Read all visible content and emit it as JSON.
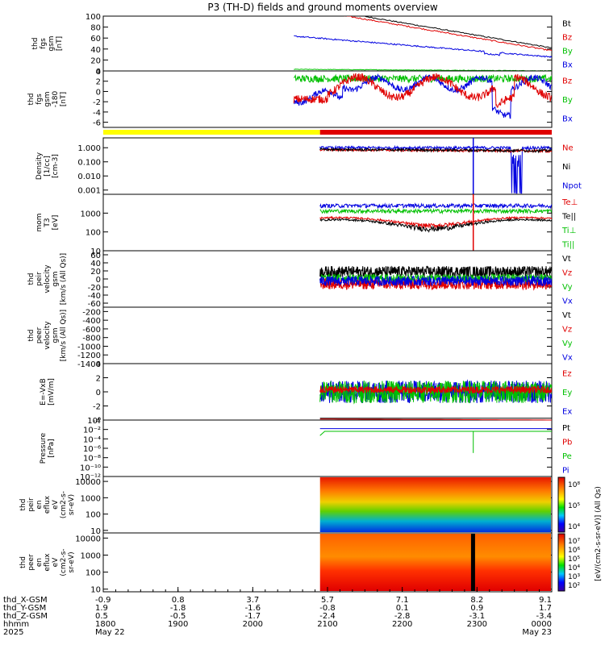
{
  "title": "P3 (TH-D) fields and ground moments overview",
  "chart_data": {
    "type": "line",
    "time_axis": {
      "rows": [
        {
          "label": "thd_X-GSM",
          "values": [
            "-0.9",
            "0.8",
            "3.7",
            "5.7",
            "7.1",
            "8.2",
            "9.1"
          ]
        },
        {
          "label": "thd_Y-GSM",
          "values": [
            "1.9",
            "-1.8",
            "-1.6",
            "-0.8",
            "0.1",
            "0.9",
            "1.7"
          ]
        },
        {
          "label": "thd_Z-GSM",
          "values": [
            "0.5",
            "-0.5",
            "-1.7",
            "-2.4",
            "-2.8",
            "-3.1",
            "-3.4"
          ]
        },
        {
          "label": "hhmm",
          "values": [
            "1800",
            "1900",
            "2000",
            "2100",
            "2200",
            "2300",
            "0000"
          ]
        },
        {
          "label": "2025",
          "values": [
            "May 22",
            "",
            "",
            "",
            "",
            "",
            "May 23"
          ]
        }
      ]
    },
    "panels": [
      {
        "id": "fgs",
        "ylabel": [
          "thd",
          "fgs",
          "gsm",
          "[nT]"
        ],
        "scale": "linear",
        "ylim": [
          0,
          100
        ],
        "ticks": [
          "0",
          "20",
          "40",
          "60",
          "80",
          "100"
        ],
        "legend": [
          {
            "name": "Bt",
            "color": "#000000"
          },
          {
            "name": "Bz",
            "color": "#e00000"
          },
          {
            "name": "By",
            "color": "#00c000"
          },
          {
            "name": "Bx",
            "color": "#0000e0"
          }
        ]
      },
      {
        "id": "fgs_dsl",
        "ylabel": [
          "thd",
          "fgs",
          "gsm",
          "-180",
          "[nT]"
        ],
        "scale": "linear",
        "ylim": [
          -7,
          4
        ],
        "ticks": [
          "-6",
          "-4",
          "-2",
          "0",
          "2",
          "4"
        ],
        "legend": [
          {
            "name": "Bz",
            "color": "#e00000"
          },
          {
            "name": "By",
            "color": "#00c000"
          },
          {
            "name": "Bx",
            "color": "#0000e0"
          }
        ]
      },
      {
        "id": "density",
        "ylabel": [
          "Density",
          "[1/cc]",
          "[cm-3]"
        ],
        "scale": "log",
        "ylim": [
          0.0005,
          5
        ],
        "ticks": [
          "1.000",
          "0.100",
          "0.010",
          "0.001"
        ],
        "legend": [
          {
            "name": "Ne",
            "color": "#e00000"
          },
          {
            "name": "Ni",
            "color": "#000000"
          },
          {
            "name": "Npot",
            "color": "#0000e0"
          }
        ]
      },
      {
        "id": "temp",
        "ylabel": [
          "mom",
          "T3",
          "[eV]"
        ],
        "scale": "log",
        "ylim": [
          10,
          10000
        ],
        "ticks": [
          "1000",
          "100",
          "10"
        ],
        "legend": [
          {
            "name": "Te⊥",
            "color": "#e00000"
          },
          {
            "name": "Te||",
            "color": "#000000"
          },
          {
            "name": "Ti⊥",
            "color": "#00c000"
          },
          {
            "name": "Ti||",
            "color": "#00c000"
          }
        ]
      },
      {
        "id": "vel_i",
        "ylabel": [
          "thd",
          "peir",
          "velocity",
          "gsm",
          "[km/s (All Qs)]"
        ],
        "scale": "linear",
        "ylim": [
          -70,
          70
        ],
        "ticks": [
          "60",
          "40",
          "20",
          "0",
          "-20",
          "-40",
          "-60"
        ],
        "legend": [
          {
            "name": "Vt",
            "color": "#000000"
          },
          {
            "name": "Vz",
            "color": "#e00000"
          },
          {
            "name": "Vy",
            "color": "#00c000"
          },
          {
            "name": "Vx",
            "color": "#0000e0"
          }
        ]
      },
      {
        "id": "vel_e",
        "ylabel": [
          "thd",
          "peer",
          "velocity",
          "gsm",
          "[km/s (All Qs)]"
        ],
        "scale": "linear",
        "ylim": [
          -1400,
          -100
        ],
        "ticks": [
          "-200",
          "-400",
          "-600",
          "-800",
          "-1000",
          "-1200",
          "-1400"
        ],
        "legend": [
          {
            "name": "Vt",
            "color": "#000000"
          },
          {
            "name": "Vz",
            "color": "#e00000"
          },
          {
            "name": "Vy",
            "color": "#00c000"
          },
          {
            "name": "Vx",
            "color": "#0000e0"
          }
        ]
      },
      {
        "id": "efield",
        "ylabel": [
          "E=-VxB",
          "[mV/m]"
        ],
        "scale": "linear",
        "ylim": [
          -4,
          4
        ],
        "ticks": [
          "4",
          "2",
          "0",
          "-2",
          "-4"
        ],
        "legend": [
          {
            "name": "Ez",
            "color": "#e00000"
          },
          {
            "name": "Ey",
            "color": "#00c000"
          },
          {
            "name": "Ex",
            "color": "#0000e0"
          }
        ]
      },
      {
        "id": "pressure",
        "ylabel": [
          "Pressure",
          "[nPa]"
        ],
        "scale": "log",
        "ylim": [
          1e-12,
          1
        ],
        "ticks": [
          "10⁰",
          "10⁻²",
          "10⁻⁴",
          "10⁻⁶",
          "10⁻⁸",
          "10⁻¹⁰",
          "10⁻¹²"
        ],
        "legend": [
          {
            "name": "Pt",
            "color": "#000000"
          },
          {
            "name": "Pb",
            "color": "#e00000"
          },
          {
            "name": "Pe",
            "color": "#00c000"
          },
          {
            "name": "Pi",
            "color": "#0000e0"
          }
        ]
      },
      {
        "id": "spec_i",
        "ylabel": [
          "thd",
          "peir",
          "en",
          "eflux",
          "eV",
          "(cm2-s-",
          "sr-eV)"
        ],
        "scale": "log",
        "ylim": [
          7,
          20000
        ],
        "ticks": [
          "10000",
          "1000",
          "100",
          "10"
        ],
        "colorbar": {
          "label": "[eV/(cm2-s-sr-eV)] (All Qs)",
          "ticks": [
            "10⁸",
            "10⁵",
            "10⁴"
          ]
        }
      },
      {
        "id": "spec_e",
        "ylabel": [
          "thd",
          "peer",
          "en",
          "eflux",
          "eV",
          "(cm2-s-",
          "sr-eV)"
        ],
        "scale": "log",
        "ylim": [
          7,
          20000
        ],
        "ticks": [
          "10000",
          "1000",
          "100",
          "10"
        ],
        "colorbar": {
          "label": "[eV/(cm2-s-sr-eV)] (All Qs)",
          "ticks": [
            "10⁷",
            "10⁶",
            "10⁵",
            "10⁴",
            "10³",
            "10²"
          ]
        }
      }
    ]
  }
}
